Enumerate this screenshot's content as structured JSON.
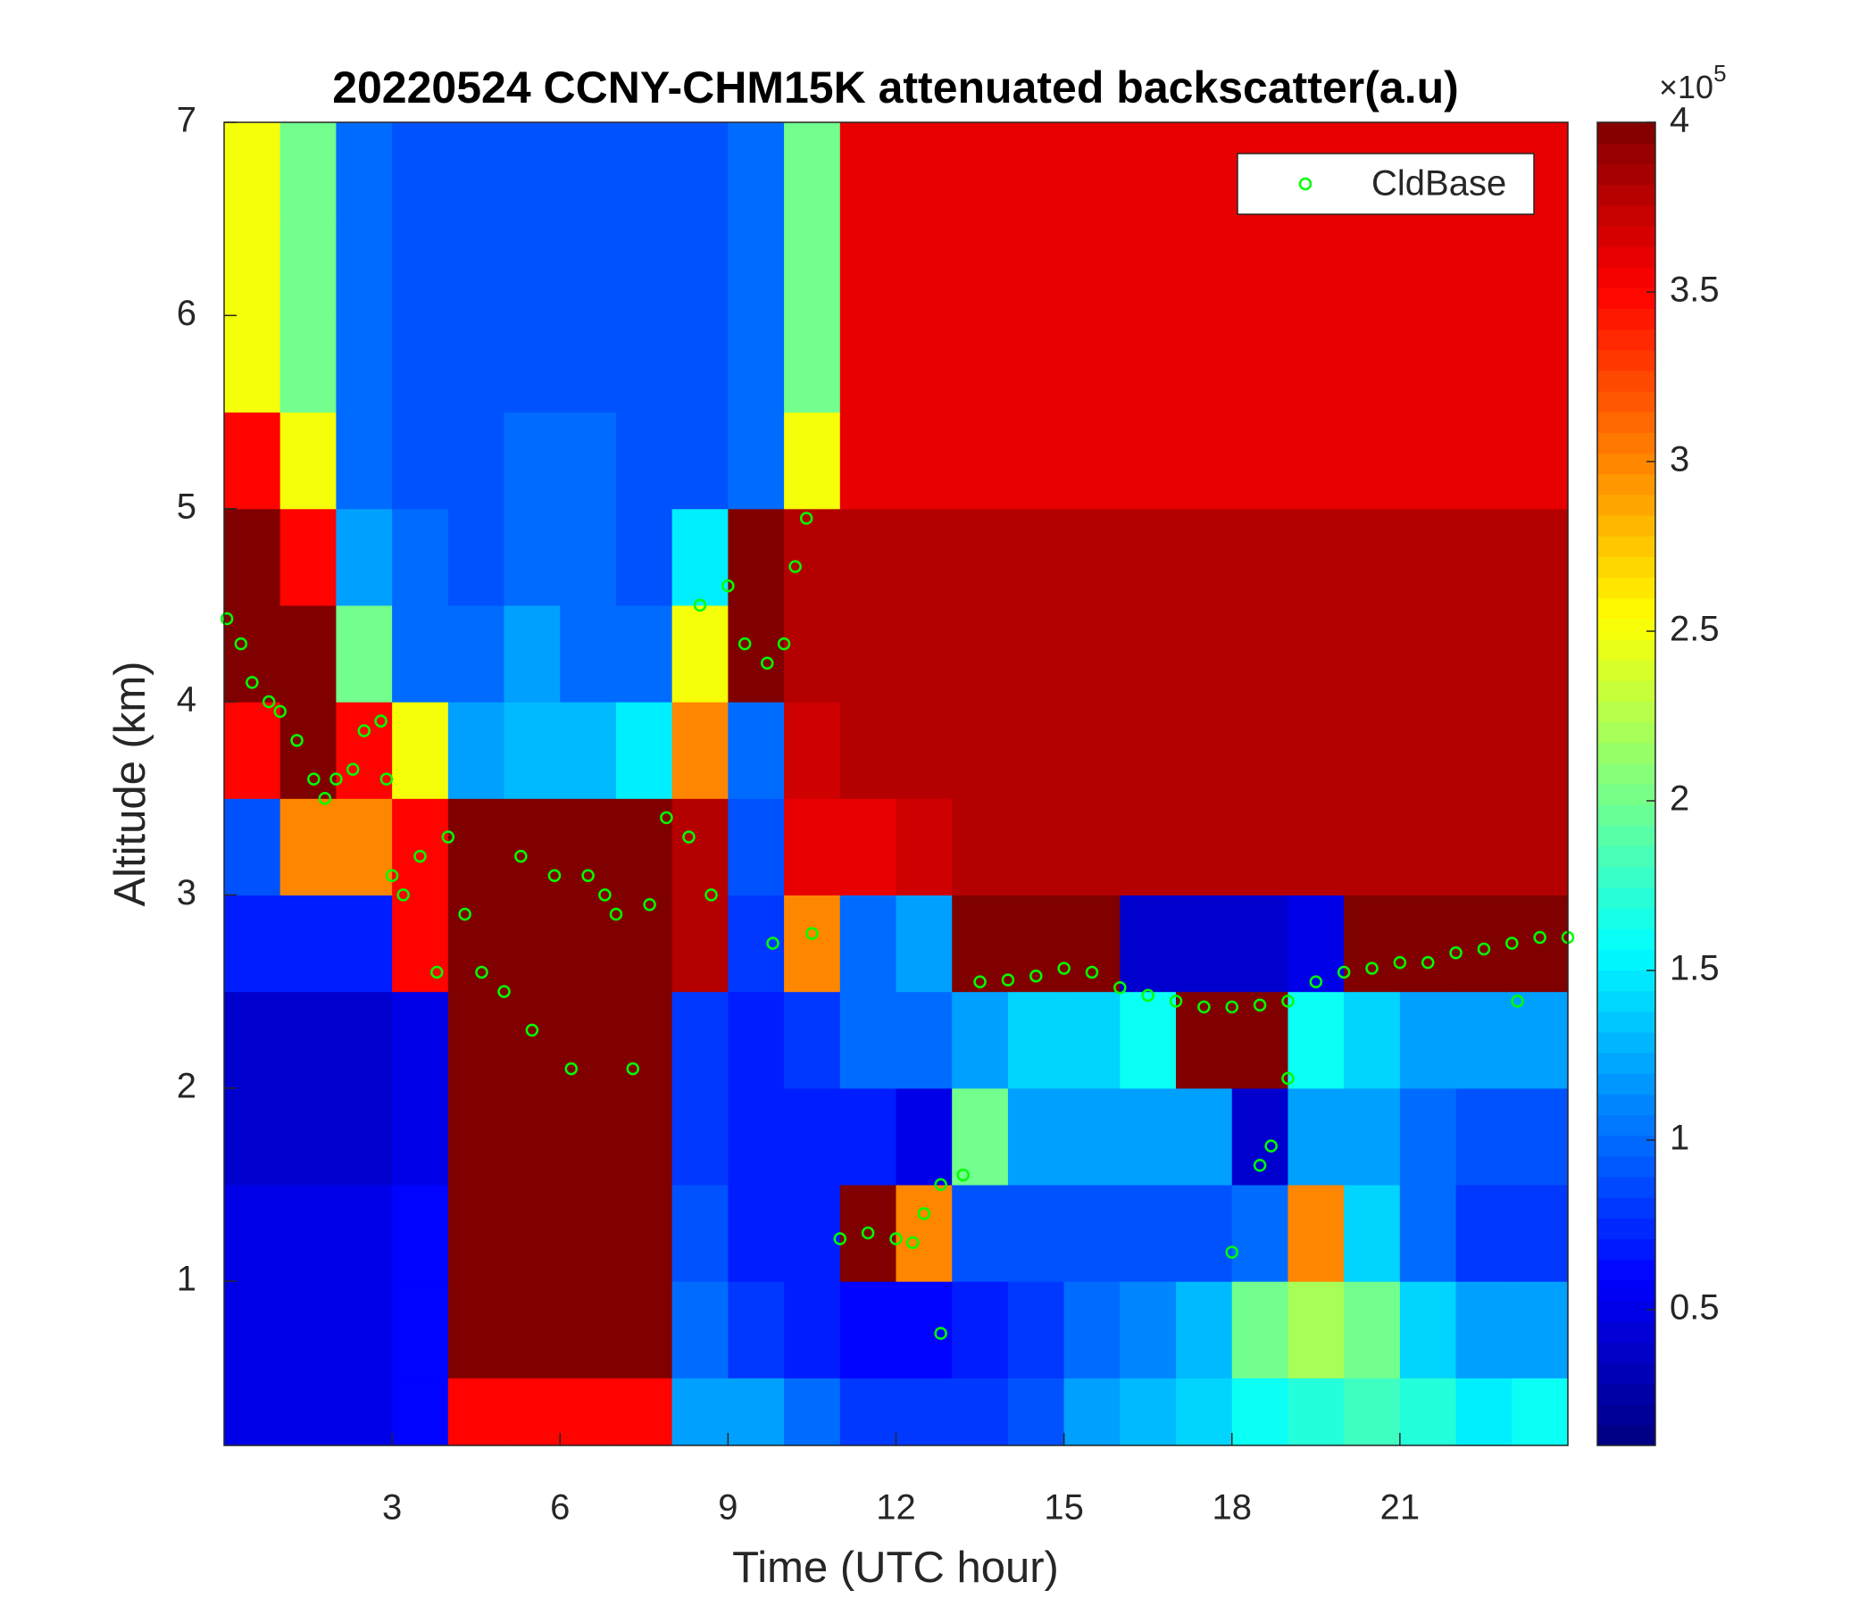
{
  "chart_data": {
    "type": "heatmap",
    "title": "20220524 CCNY-CHM15K attenuated backscatter(a.u)",
    "x_label": "Time (UTC hour)",
    "y_label": "Altitude (km)",
    "xlim": [
      0,
      24
    ],
    "ylim": [
      0.15,
      7
    ],
    "xticks": [
      3,
      6,
      9,
      12,
      15,
      18,
      21
    ],
    "yticks": [
      1,
      2,
      3,
      4,
      5,
      6,
      7
    ],
    "colormap": "jet",
    "clim": [
      0.1,
      4
    ],
    "colorbar_ticks": [
      0.5,
      1,
      1.5,
      2,
      2.5,
      3,
      3.5,
      4
    ],
    "colorbar_scale_base": "×10",
    "colorbar_scale_exponent": "5",
    "x_edges": [
      0,
      1,
      2,
      3,
      4,
      5,
      6,
      7,
      8,
      9,
      10,
      11,
      12,
      13,
      14,
      15,
      16,
      17,
      18,
      19,
      20,
      21,
      22,
      23,
      24
    ],
    "y_edges": [
      0.15,
      0.5,
      1,
      1.5,
      2,
      2.5,
      3,
      3.5,
      4,
      4.5,
      5,
      5.5,
      6,
      6.5,
      7
    ],
    "z": [
      [
        0.5,
        0.5,
        0.5,
        0.6,
        3.5,
        3.5,
        3.5,
        3.5,
        1.2,
        1.2,
        1.0,
        0.8,
        0.8,
        0.8,
        0.9,
        1.2,
        1.3,
        1.4,
        1.6,
        1.7,
        1.8,
        1.7,
        1.5,
        1.6
      ],
      [
        0.5,
        0.5,
        0.5,
        0.6,
        4,
        4,
        4,
        4,
        1.0,
        0.8,
        0.7,
        0.6,
        0.6,
        0.7,
        0.8,
        1.0,
        1.1,
        1.3,
        2.0,
        2.2,
        2.0,
        1.4,
        1.2,
        1.2
      ],
      [
        0.5,
        0.5,
        0.5,
        0.6,
        4,
        4,
        4,
        4,
        0.9,
        0.7,
        0.7,
        4,
        3.0,
        0.9,
        0.9,
        0.9,
        0.9,
        0.9,
        1.0,
        3.0,
        1.4,
        1.0,
        0.8,
        0.8
      ],
      [
        0.4,
        0.4,
        0.4,
        0.5,
        4,
        4,
        4,
        4,
        0.8,
        0.7,
        0.7,
        0.7,
        0.5,
        2.0,
        1.2,
        1.2,
        1.2,
        1.2,
        0.4,
        1.2,
        1.2,
        1.0,
        0.9,
        0.9
      ],
      [
        0.4,
        0.4,
        0.4,
        0.5,
        4,
        4,
        4,
        4,
        0.8,
        0.7,
        0.8,
        1.0,
        1.0,
        1.2,
        1.4,
        1.4,
        1.6,
        4,
        4,
        1.6,
        1.4,
        1.2,
        1.2,
        1.2
      ],
      [
        0.7,
        0.7,
        0.7,
        3.5,
        4,
        4,
        4,
        4,
        3.8,
        0.8,
        3.0,
        1.0,
        1.2,
        4,
        4,
        4,
        0.4,
        0.4,
        0.4,
        0.5,
        4,
        4,
        4,
        4
      ],
      [
        0.9,
        3.0,
        3.0,
        3.5,
        4,
        4,
        4,
        4,
        3.8,
        0.9,
        3.6,
        3.6,
        3.7,
        3.8,
        3.8,
        3.8,
        3.8,
        3.8,
        3.8,
        3.8,
        3.8,
        3.8,
        3.8,
        3.8
      ],
      [
        3.5,
        4,
        3.5,
        2.5,
        1.2,
        1.3,
        1.3,
        1.5,
        3.0,
        1.0,
        3.7,
        3.8,
        3.8,
        3.8,
        3.8,
        3.8,
        3.8,
        3.8,
        3.8,
        3.8,
        3.8,
        3.8,
        3.8,
        3.8
      ],
      [
        4,
        4,
        2.0,
        1.0,
        1.0,
        1.2,
        1.0,
        1.0,
        2.5,
        4,
        3.8,
        3.8,
        3.8,
        3.8,
        3.8,
        3.8,
        3.8,
        3.8,
        3.8,
        3.8,
        3.8,
        3.8,
        3.8,
        3.8
      ],
      [
        4,
        3.5,
        1.2,
        1.0,
        0.9,
        1.0,
        1.0,
        0.9,
        1.5,
        4,
        3.8,
        3.8,
        3.8,
        3.8,
        3.8,
        3.8,
        3.8,
        3.8,
        3.8,
        3.8,
        3.8,
        3.8,
        3.8,
        3.8
      ],
      [
        3.5,
        2.5,
        1.0,
        0.9,
        0.9,
        1.0,
        1.0,
        0.9,
        0.9,
        1.0,
        2.5,
        3.6,
        3.6,
        3.6,
        3.6,
        3.6,
        3.6,
        3.6,
        3.6,
        3.6,
        3.6,
        3.6,
        3.6,
        3.6
      ],
      [
        2.5,
        2.0,
        1.0,
        0.9,
        0.9,
        0.9,
        0.9,
        0.9,
        0.9,
        1.0,
        2.0,
        3.6,
        3.6,
        3.6,
        3.6,
        3.6,
        3.6,
        3.6,
        3.6,
        3.6,
        3.6,
        3.6,
        3.6,
        3.6
      ],
      [
        2.5,
        2.0,
        1.0,
        0.9,
        0.9,
        0.9,
        0.9,
        0.9,
        0.9,
        1.0,
        2.0,
        3.6,
        3.6,
        3.6,
        3.6,
        3.6,
        3.6,
        3.6,
        3.6,
        3.6,
        3.6,
        3.6,
        3.6,
        3.6
      ],
      [
        2.5,
        2.0,
        1.0,
        0.9,
        0.9,
        0.9,
        0.9,
        0.9,
        0.9,
        1.0,
        2.0,
        3.6,
        3.6,
        3.6,
        3.6,
        3.6,
        3.6,
        3.6,
        3.6,
        3.6,
        3.6,
        3.6,
        3.6,
        3.6
      ]
    ],
    "legend": "upper right",
    "series": [
      {
        "name": "CldBase",
        "color": "#00ff00",
        "type": "scatter",
        "x": [
          0.05,
          0.3,
          0.5,
          0.8,
          1.0,
          1.3,
          1.6,
          1.8,
          2.0,
          2.3,
          2.5,
          2.8,
          2.9,
          3.0,
          3.2,
          3.5,
          3.8,
          4.0,
          4.3,
          4.6,
          5.0,
          5.3,
          5.5,
          5.9,
          6.2,
          6.5,
          6.8,
          7.0,
          7.3,
          7.6,
          7.9,
          8.3,
          8.5,
          8.7,
          9.0,
          9.3,
          9.7,
          10.0,
          10.2,
          10.4,
          9.8,
          10.5,
          11.0,
          11.5,
          12.0,
          12.3,
          12.5,
          12.8,
          13.2,
          12.8,
          13.5,
          14.0,
          14.5,
          15.0,
          15.5,
          16.0,
          16.5,
          17.0,
          17.5,
          18.0,
          18.5,
          18.5,
          18.7,
          19.0,
          18.0,
          19.0,
          19.5,
          20.0,
          20.5,
          21.0,
          21.5,
          22.0,
          22.5,
          23.0,
          23.5,
          24.0,
          23.1
        ],
        "y": [
          4.43,
          4.3,
          4.1,
          4.0,
          3.95,
          3.8,
          3.6,
          3.5,
          3.6,
          3.65,
          3.85,
          3.9,
          3.6,
          3.1,
          3.0,
          3.2,
          2.6,
          3.3,
          2.9,
          2.6,
          2.5,
          3.2,
          2.3,
          3.1,
          2.1,
          3.1,
          3.0,
          2.9,
          2.1,
          2.95,
          3.4,
          3.3,
          4.5,
          3.0,
          4.6,
          4.3,
          4.2,
          4.3,
          4.7,
          4.95,
          2.75,
          2.8,
          1.22,
          1.25,
          1.22,
          1.2,
          1.35,
          1.5,
          1.55,
          0.73,
          2.55,
          2.56,
          2.58,
          2.62,
          2.6,
          2.52,
          2.48,
          2.45,
          2.42,
          2.42,
          2.43,
          1.6,
          1.7,
          2.05,
          1.15,
          2.45,
          2.55,
          2.6,
          2.62,
          2.65,
          2.65,
          2.7,
          2.72,
          2.75,
          2.78,
          2.78,
          2.45
        ]
      }
    ]
  }
}
